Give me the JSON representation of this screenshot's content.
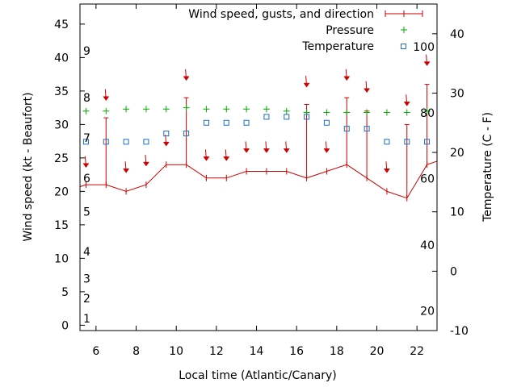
{
  "chart_data": {
    "type": "line",
    "xlabel": "Local time (Atlantic/Canary)",
    "ylabel": "Wind speed (kt - Beaufort)",
    "y2label": "Temperature (C - F)",
    "xlim": [
      5.2,
      23
    ],
    "ylim": [
      -0.8,
      48
    ],
    "y2lim": [
      -10,
      45
    ],
    "x_ticks": [
      6,
      8,
      10,
      12,
      14,
      16,
      18,
      20,
      22
    ],
    "y_ticks": [
      0,
      5,
      10,
      15,
      20,
      25,
      30,
      35,
      40,
      45
    ],
    "y2_ticks": [
      -10,
      0,
      10,
      20,
      30,
      40
    ],
    "beaufort_labels": [
      {
        "label": "1",
        "kt": 1
      },
      {
        "label": "2",
        "kt": 4
      },
      {
        "label": "3",
        "kt": 7
      },
      {
        "label": "4",
        "kt": 11
      },
      {
        "label": "5",
        "kt": 17
      },
      {
        "label": "6",
        "kt": 22
      },
      {
        "label": "7",
        "kt": 28
      },
      {
        "label": "8",
        "kt": 34
      },
      {
        "label": "9",
        "kt": 41
      }
    ],
    "fahrenheit_labels": [
      {
        "label": "20",
        "c": -6.7
      },
      {
        "label": "40",
        "c": 4.4
      },
      {
        "label": "60",
        "c": 15.6
      },
      {
        "label": "80",
        "c": 26.7
      },
      {
        "label": "100",
        "c": 37.8
      }
    ],
    "legend_position": "top-right",
    "series": [
      {
        "name": "Wind speed, gusts, and direction",
        "color": "#cc0000",
        "x": [
          5,
          5.5,
          6.5,
          7.5,
          8.5,
          9.5,
          10.5,
          11.5,
          12.5,
          13.5,
          14.5,
          15.5,
          16.5,
          17.5,
          18.5,
          19.5,
          20.5,
          21.5,
          22.5,
          23
        ],
        "values": [
          20.5,
          21,
          21,
          20,
          21,
          24,
          24,
          22,
          22,
          23,
          23,
          23,
          22,
          23,
          24,
          22,
          20,
          19,
          24,
          24.5
        ],
        "gusts": [
          null,
          null,
          31,
          null,
          null,
          null,
          34,
          null,
          null,
          null,
          null,
          null,
          33,
          null,
          34,
          32,
          null,
          30,
          36,
          null
        ],
        "arrows": [
          {
            "x": 5.5,
            "kt": 24.3
          },
          {
            "x": 6.5,
            "kt": 34.3
          },
          {
            "x": 7.5,
            "kt": 23.5
          },
          {
            "x": 8.5,
            "kt": 24.5
          },
          {
            "x": 9.5,
            "kt": 27.5
          },
          {
            "x": 10.5,
            "kt": 37.3
          },
          {
            "x": 11.5,
            "kt": 25.3
          },
          {
            "x": 12.5,
            "kt": 25.3
          },
          {
            "x": 13.5,
            "kt": 26.5
          },
          {
            "x": 14.5,
            "kt": 26.5
          },
          {
            "x": 15.5,
            "kt": 26.5
          },
          {
            "x": 16.5,
            "kt": 36.3
          },
          {
            "x": 17.5,
            "kt": 26.5
          },
          {
            "x": 18.5,
            "kt": 37.3
          },
          {
            "x": 19.5,
            "kt": 35.5
          },
          {
            "x": 20.5,
            "kt": 23.5
          },
          {
            "x": 21.5,
            "kt": 33.5
          },
          {
            "x": 22.5,
            "kt": 39.5
          }
        ]
      },
      {
        "name": "Pressure",
        "color": "#00aa00",
        "x": [
          5.5,
          6.5,
          7.5,
          8.5,
          9.5,
          10.5,
          11.5,
          12.5,
          13.5,
          14.5,
          15.5,
          16.5,
          17.5,
          18.5,
          19.5,
          20.5,
          21.5,
          22.5
        ],
        "values": [
          32,
          32,
          32.3,
          32.3,
          32.3,
          32.5,
          32.3,
          32.3,
          32.3,
          32.3,
          32,
          31.8,
          31.8,
          31.8,
          31.8,
          31.8,
          31.8,
          32
        ]
      },
      {
        "name": "Temperature",
        "color": "#1e6fc0",
        "x": [
          5.5,
          6.5,
          7.5,
          8.5,
          9.5,
          10.5,
          11.5,
          12.5,
          13.5,
          14.5,
          15.5,
          16.5,
          17.5,
          18.5,
          19.5,
          20.5,
          21.5,
          22.5
        ],
        "values": [
          21.8,
          21.8,
          21.8,
          21.8,
          23.2,
          23.2,
          25,
          25,
          25,
          26,
          26,
          26,
          25,
          24,
          24,
          21.8,
          21.8,
          21.8
        ]
      }
    ]
  }
}
